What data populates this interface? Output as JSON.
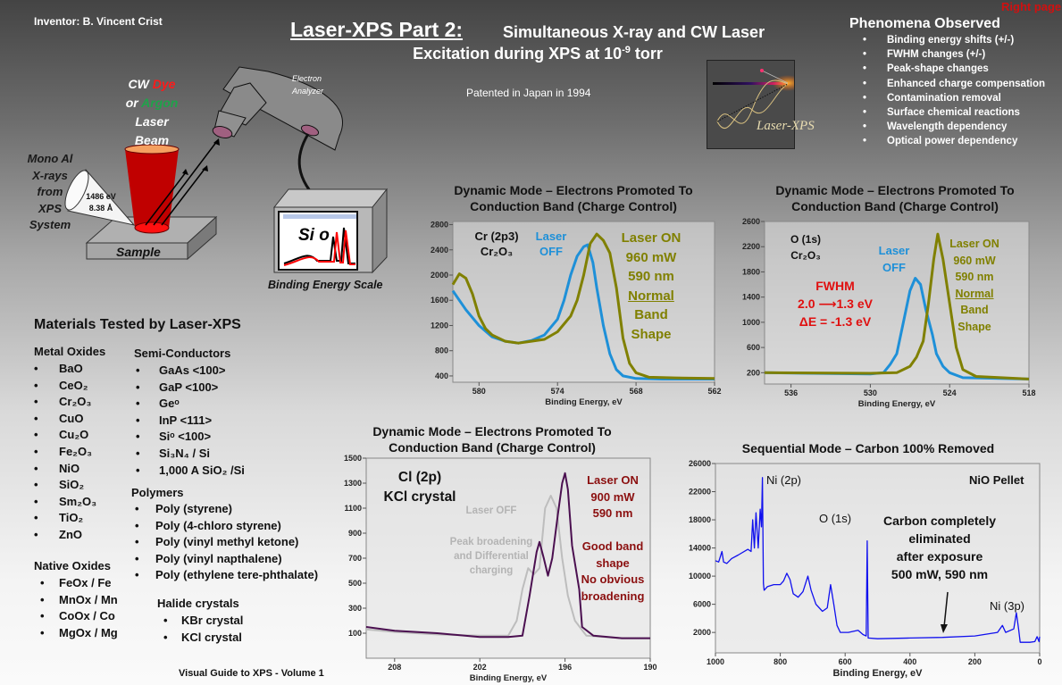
{
  "header": {
    "inventor": "Inventor:  B. Vincent Crist",
    "title_main": "Laser-XPS  Part 2:",
    "title_rest": "Simultaneous X-ray and CW Laser",
    "title_line2_a": "Excitation during XPS at 10",
    "title_line2_exp": "-9",
    "title_line2_b": " torr",
    "patent": "Patented in Japan in 1994",
    "right_page": "Right page"
  },
  "logo": {
    "text": "Laser-XPS"
  },
  "phenomena": {
    "title": "Phenomena Observed",
    "items": [
      "Binding energy shifts (+/-)",
      "FWHM changes  (+/-)",
      "Peak-shape changes",
      "Enhanced charge compensation",
      "Contamination removal",
      "Surface chemical reactions",
      "Wavelength dependency",
      "Optical power dependency"
    ]
  },
  "diagram": {
    "laser_cw": "CW ",
    "laser_dye": "Dye",
    "laser_or": "or ",
    "laser_argon": "Argon",
    "laser_l3": "Laser",
    "laser_l4": "Beam",
    "xray": [
      "Mono Al",
      "X-rays",
      "from",
      "XPS",
      "System"
    ],
    "xray_energy": "1486 eV",
    "xray_wavelength": "8.38 Å",
    "sample": "Sample",
    "analyzer": [
      "Electron",
      "Analyzer"
    ],
    "screen_label": "Si o",
    "scale": "Binding Energy Scale",
    "colors": {
      "laser": "#c00000",
      "dye": "#ff1a1a",
      "argon": "#1fa34a"
    }
  },
  "materials": {
    "title": "Materials Tested by Laser-XPS",
    "metal_oxides": {
      "title": "Metal Oxides",
      "items": [
        "BaO",
        "CeO₂",
        "Cr₂O₃",
        "CuO",
        "Cu₂O",
        "Fe₂O₃",
        "NiO",
        "SiO₂",
        "Sm₂O₃",
        "TiO₂",
        "ZnO"
      ]
    },
    "semiconductors": {
      "title": "Semi-Conductors",
      "items": [
        "GaAs <100>",
        "GaP <100>",
        "Geᵒ",
        "InP <111>",
        "Siᵒ <100>",
        "Si₃N₄ / Si",
        "1,000 A SiO₂ /Si"
      ]
    },
    "polymers": {
      "title": "Polymers",
      "items": [
        "Poly (styrene)",
        "Poly (4-chloro styrene)",
        "Poly (vinyl methyl ketone)",
        "Poly (vinyl napthalene)",
        "Poly (ethylene tere-phthalate)"
      ]
    },
    "native_oxides": {
      "title": "Native Oxides",
      "items": [
        "FeOx / Fe",
        "MnOx / Mn",
        "CoOx / Co",
        "MgOx / Mg"
      ]
    },
    "halides": {
      "title": "Halide crystals",
      "items": [
        "KBr crystal",
        "KCl crystal"
      ]
    }
  },
  "footer": "Visual Guide to XPS - Volume 1",
  "chart_data": [
    {
      "type": "line",
      "title": [
        "Dynamic Mode –  Electrons Promoted To",
        "Conduction Band (Charge Control)"
      ],
      "xlabel": "Binding Energy, eV",
      "xlim": [
        582,
        562
      ],
      "ylim": [
        300,
        2850
      ],
      "xticks": [
        580,
        574,
        568,
        562
      ],
      "yticks": [
        400,
        800,
        1200,
        1600,
        2000,
        2400,
        2800
      ],
      "annotations": {
        "peak": "Cr (2p3)",
        "compound": "Cr₂O₃",
        "off": [
          "Laser",
          "OFF"
        ],
        "on": [
          "Laser ON",
          "960 mW",
          "590 nm",
          "Normal",
          "Band",
          "Shape"
        ]
      },
      "series": [
        {
          "name": "Laser OFF",
          "color": "#1e90d8",
          "x": [
            582,
            581,
            580,
            579,
            578,
            577,
            576,
            575,
            574,
            573.5,
            573,
            572.5,
            572,
            571.7,
            571.3,
            571,
            570.5,
            570,
            569.5,
            569,
            568,
            566,
            564,
            562
          ],
          "y": [
            1750,
            1450,
            1200,
            1020,
            950,
            920,
            960,
            1050,
            1300,
            1600,
            2000,
            2300,
            2450,
            2480,
            2200,
            1800,
            1200,
            750,
            500,
            400,
            360,
            350,
            350,
            350
          ]
        },
        {
          "name": "Laser ON",
          "color": "#808000",
          "x": [
            582,
            581.5,
            581,
            580.5,
            580,
            579.5,
            579,
            578,
            577,
            576,
            575,
            574,
            573,
            572.5,
            572,
            571.5,
            571,
            570.5,
            570,
            569.5,
            569,
            568.5,
            568,
            567,
            565,
            562
          ],
          "y": [
            1850,
            2020,
            1950,
            1700,
            1350,
            1150,
            1050,
            950,
            920,
            950,
            980,
            1100,
            1350,
            1600,
            2000,
            2500,
            2650,
            2550,
            2350,
            1800,
            1000,
            600,
            450,
            380,
            370,
            360
          ]
        }
      ]
    },
    {
      "type": "line",
      "title": [
        "Dynamic Mode –  Electrons Promoted To",
        "Conduction Band (Charge Control)"
      ],
      "xlabel": "Binding Energy, eV",
      "xlim": [
        538,
        518
      ],
      "ylim": [
        20,
        2600
      ],
      "xticks": [
        536,
        530,
        524,
        518
      ],
      "yticks": [
        200,
        600,
        1000,
        1400,
        1800,
        2200,
        2600
      ],
      "annotations": {
        "peak": "O (1s)",
        "compound": "Cr₂O₃",
        "off": [
          "Laser",
          "OFF"
        ],
        "fwhm": [
          "FWHM",
          "2.0 ⟶1.3 eV",
          "ΔE = -1.3 eV"
        ],
        "on": [
          "Laser ON",
          "960 mW",
          "590 nm",
          "Normal",
          "Band",
          "Shape"
        ]
      },
      "series": [
        {
          "name": "Laser OFF",
          "color": "#1e90d8",
          "x": [
            538,
            530,
            529,
            528.5,
            528,
            527.5,
            527,
            526.6,
            526.2,
            525.8,
            525.3,
            525,
            524.5,
            524,
            523,
            518
          ],
          "y": [
            200,
            180,
            200,
            330,
            500,
            1000,
            1500,
            1700,
            1600,
            1200,
            800,
            500,
            300,
            200,
            120,
            100
          ]
        },
        {
          "name": "Laser ON",
          "color": "#808000",
          "x": [
            538,
            530,
            528,
            527,
            526.5,
            526,
            525.6,
            525.2,
            524.9,
            524.5,
            524,
            523.5,
            523,
            522,
            518
          ],
          "y": [
            200,
            190,
            200,
            300,
            450,
            700,
            1300,
            2000,
            2400,
            2000,
            1300,
            600,
            250,
            140,
            100
          ]
        }
      ]
    },
    {
      "type": "line",
      "title": [
        "Dynamic Mode –  Electrons Promoted To",
        "Conduction Band (Charge Control)"
      ],
      "xlabel": "Binding Energy, eV",
      "xlim": [
        210,
        190
      ],
      "ylim": [
        -100,
        1500
      ],
      "xticks": [
        208,
        202,
        196,
        190
      ],
      "yticks": [
        100,
        300,
        500,
        700,
        900,
        1100,
        1300,
        1500
      ],
      "annotations": {
        "peak": "Cl (2p)",
        "compound": "KCl crystal",
        "off": "Laser OFF",
        "off_note": [
          "Peak broadening",
          "and Differential",
          "charging"
        ],
        "on": [
          "Laser ON",
          "900 mW",
          "590 nm"
        ],
        "on_note": [
          "Good band",
          "shape",
          "No obvious",
          "broadening"
        ]
      },
      "series": [
        {
          "name": "Laser OFF",
          "color": "#bdbdbd",
          "x": [
            210,
            208,
            205,
            202,
            200,
            199.4,
            199,
            198.6,
            198.2,
            197.8,
            197.4,
            197,
            196.6,
            196.2,
            195.8,
            195.3,
            194.5,
            192,
            190
          ],
          "y": [
            130,
            110,
            90,
            80,
            80,
            200,
            450,
            620,
            570,
            620,
            1100,
            1200,
            1100,
            700,
            400,
            200,
            80,
            60,
            60
          ]
        },
        {
          "name": "Laser ON",
          "color": "#4b1050",
          "x": [
            210,
            208,
            205,
            202,
            200,
            199,
            198.5,
            198,
            197.8,
            197.5,
            197.2,
            196.9,
            196.5,
            196.2,
            196,
            195.8,
            195.5,
            195,
            194.8,
            194,
            192,
            190
          ],
          "y": [
            150,
            120,
            100,
            70,
            70,
            80,
            400,
            750,
            830,
            700,
            560,
            700,
            1050,
            1300,
            1380,
            1250,
            800,
            450,
            150,
            80,
            60,
            60
          ]
        }
      ]
    },
    {
      "type": "line",
      "title": [
        "Sequential Mode – Carbon 100%  Removed"
      ],
      "xlabel": "Binding Energy, eV",
      "xlim": [
        1000,
        0
      ],
      "ylim": [
        -900,
        26000
      ],
      "xticks": [
        1000,
        800,
        600,
        400,
        200,
        0
      ],
      "yticks": [
        2000,
        6000,
        10000,
        14000,
        18000,
        22000,
        26000
      ],
      "annotations": {
        "ni2p": "Ni (2p)",
        "o1s": "O (1s)",
        "sample": "NiO Pellet",
        "ni3p": "Ni (3p)",
        "carbon": [
          "Carbon completely",
          "eliminated",
          "after exposure",
          "500 mW, 590 nm"
        ]
      },
      "series": [
        {
          "color": "#1010ee",
          "x": [
            1000,
            990,
            980,
            975,
            965,
            950,
            930,
            900,
            890,
            885,
            880,
            875,
            868,
            862,
            858,
            855,
            852,
            850,
            840,
            820,
            800,
            790,
            780,
            770,
            760,
            745,
            730,
            715,
            705,
            690,
            670,
            655,
            645,
            635,
            625,
            615,
            590,
            560,
            545,
            535,
            532,
            529,
            500,
            400,
            300,
            200,
            130,
            115,
            105,
            80,
            72,
            65,
            60,
            30,
            15,
            8,
            2,
            0
          ],
          "y": [
            12200,
            12000,
            13500,
            12000,
            11800,
            12500,
            13000,
            13800,
            13500,
            18000,
            14000,
            19000,
            14000,
            19500,
            17000,
            24000,
            9000,
            8000,
            8500,
            8800,
            8800,
            9300,
            10400,
            9500,
            7500,
            7000,
            7800,
            10000,
            8000,
            6000,
            5000,
            5500,
            8800,
            6000,
            3000,
            2000,
            2000,
            2300,
            1700,
            1500,
            15000,
            1200,
            1100,
            1200,
            1300,
            1500,
            2000,
            3000,
            2000,
            2500,
            4800,
            2500,
            600,
            600,
            700,
            1400,
            700,
            1400
          ]
        }
      ]
    }
  ]
}
